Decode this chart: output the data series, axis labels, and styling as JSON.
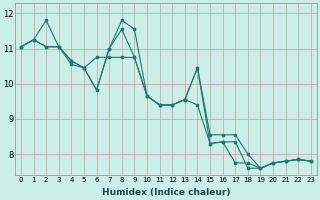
{
  "xlabel": "Humidex (Indice chaleur)",
  "bg_color": "#cceee8",
  "line_color": "#1a7a6e",
  "grid_color": "#c8a0a0",
  "xlim": [
    -0.5,
    23.5
  ],
  "ylim": [
    7.4,
    12.3
  ],
  "yticks": [
    8,
    9,
    10,
    11,
    12
  ],
  "xticks": [
    0,
    1,
    2,
    3,
    4,
    5,
    6,
    7,
    8,
    9,
    10,
    11,
    12,
    13,
    14,
    15,
    16,
    17,
    18,
    19,
    20,
    21,
    22,
    23
  ],
  "line1_x": [
    0,
    1,
    2,
    3,
    4,
    5,
    6,
    7,
    8,
    9,
    10,
    11,
    12,
    13,
    14,
    15,
    16,
    17,
    18,
    19,
    20,
    21,
    22,
    23
  ],
  "line1_y": [
    11.05,
    11.25,
    11.8,
    11.05,
    10.65,
    10.45,
    9.82,
    11.0,
    11.55,
    10.75,
    9.65,
    9.4,
    9.4,
    9.55,
    10.45,
    8.3,
    8.35,
    7.75,
    7.75,
    7.6,
    7.75,
    7.8,
    7.85,
    7.8
  ],
  "line2_x": [
    0,
    1,
    2,
    3,
    4,
    5,
    6,
    7,
    8,
    9,
    10,
    11,
    12,
    13,
    14,
    15,
    16,
    17,
    18,
    19,
    20,
    21,
    22,
    23
  ],
  "line2_y": [
    11.05,
    11.25,
    11.05,
    11.05,
    10.65,
    10.45,
    10.75,
    10.75,
    10.75,
    10.75,
    9.65,
    9.4,
    9.4,
    9.55,
    9.4,
    8.3,
    8.35,
    8.35,
    7.6,
    7.6,
    7.75,
    7.8,
    7.85,
    7.8
  ],
  "line3_x": [
    0,
    1,
    2,
    3,
    4,
    5,
    6,
    7,
    8,
    9,
    10,
    11,
    12,
    13,
    14,
    15,
    16,
    17,
    18,
    19,
    20,
    21,
    22,
    23
  ],
  "line3_y": [
    11.05,
    11.25,
    11.05,
    11.05,
    10.55,
    10.45,
    9.82,
    11.0,
    11.8,
    11.55,
    9.65,
    9.4,
    9.4,
    9.55,
    10.45,
    8.55,
    8.55,
    8.55,
    8.0,
    7.6,
    7.75,
    7.8,
    7.85,
    7.8
  ]
}
